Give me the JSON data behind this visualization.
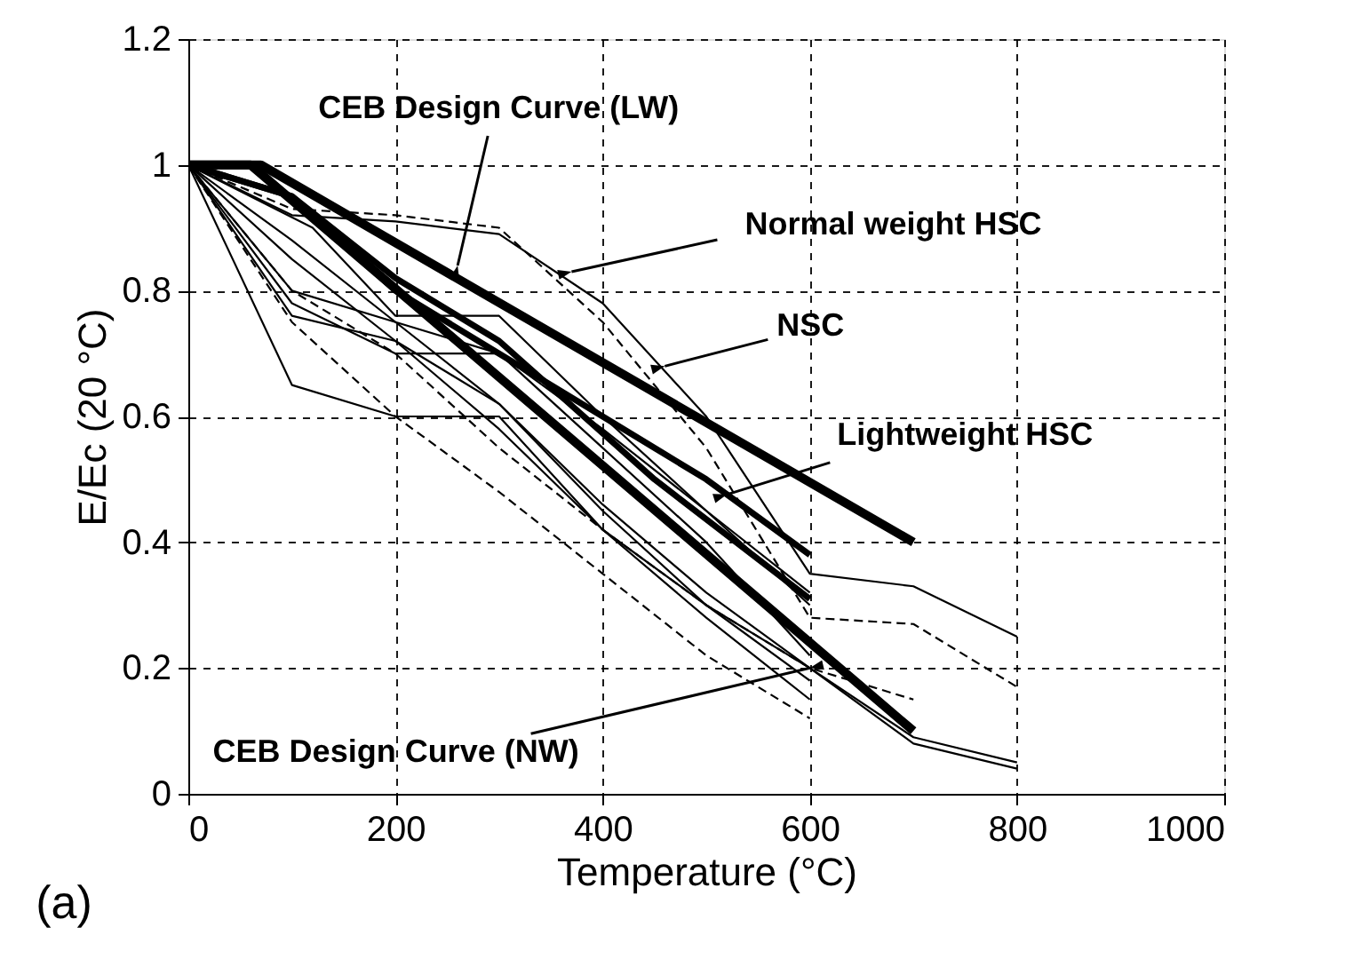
{
  "chart_data": {
    "type": "line",
    "xlabel": "Temperature (°C)",
    "ylabel": "E/Ec (20 °C)",
    "xlim": [
      0,
      1000
    ],
    "xticks": [
      0,
      200,
      400,
      600,
      800,
      1000
    ],
    "ylim": [
      0,
      1.2
    ],
    "yticks": [
      0,
      0.2,
      0.4,
      0.6,
      0.8,
      1,
      1.2
    ],
    "grid": true,
    "line_style": "solid",
    "series": [
      {
        "color": "#000000",
        "x": [
          0,
          70,
          700
        ],
        "values": [
          1,
          1,
          0.4
        ]
      },
      {
        "color": "#000000",
        "x": [
          0,
          60,
          700
        ],
        "values": [
          1,
          1,
          0.1
        ]
      },
      {
        "color": "#000000",
        "x": [
          0,
          100,
          200,
          300,
          400,
          500,
          600
        ],
        "values": [
          1,
          0.95,
          0.8,
          0.7,
          0.6,
          0.5,
          0.38
        ]
      },
      {
        "color": "#000000",
        "x": [
          0,
          100,
          200,
          300,
          450,
          600
        ],
        "values": [
          1,
          0.95,
          0.82,
          0.72,
          0.5,
          0.31
        ]
      },
      {
        "color": "#000000",
        "x": [
          0,
          100,
          200,
          300,
          400,
          500,
          600
        ],
        "values": [
          1,
          0.76,
          0.72,
          0.62,
          0.45,
          0.3,
          0.18
        ]
      },
      {
        "color": "#000000",
        "x": [
          0,
          100,
          200,
          300,
          400,
          500,
          600
        ],
        "values": [
          1,
          0.65,
          0.6,
          0.6,
          0.42,
          0.28,
          0.15
        ]
      },
      {
        "color": "#000000",
        "x": [
          0,
          100,
          200,
          300,
          400,
          500,
          600
        ],
        "values": [
          1,
          0.78,
          0.7,
          0.7,
          0.55,
          0.4,
          0.22
        ]
      },
      {
        "color": "#000000",
        "x": [
          0,
          120,
          200,
          300,
          400,
          500,
          600
        ],
        "values": [
          1,
          0.9,
          0.76,
          0.76,
          0.6,
          0.45,
          0.3
        ]
      },
      {
        "color": "#000000",
        "x": [
          0,
          100,
          200,
          300,
          400,
          500,
          600,
          700,
          800
        ],
        "values": [
          1,
          0.92,
          0.91,
          0.89,
          0.78,
          0.6,
          0.35,
          0.33,
          0.25
        ]
      },
      {
        "color": "#000000",
        "line_style": "dashed",
        "x": [
          0,
          100,
          200,
          300,
          400,
          500,
          600,
          700,
          800
        ],
        "values": [
          1,
          0.93,
          0.92,
          0.9,
          0.75,
          0.55,
          0.28,
          0.27,
          0.17
        ]
      },
      {
        "color": "#000000",
        "line_style": "dashed",
        "x": [
          0,
          100,
          200,
          300,
          400,
          500,
          600
        ],
        "values": [
          1,
          0.75,
          0.6,
          0.48,
          0.35,
          0.22,
          0.12
        ]
      },
      {
        "color": "#000000",
        "line_style": "dashed",
        "x": [
          0,
          100,
          200,
          300,
          400,
          500,
          600,
          700
        ],
        "values": [
          1,
          0.8,
          0.7,
          0.55,
          0.42,
          0.3,
          0.2,
          0.15
        ]
      },
      {
        "color": "#000000",
        "x": [
          0,
          100,
          200,
          300,
          400,
          500,
          600,
          700,
          800
        ],
        "values": [
          1,
          0.85,
          0.72,
          0.58,
          0.42,
          0.3,
          0.2,
          0.08,
          0.04
        ]
      },
      {
        "color": "#000000",
        "x": [
          0,
          100,
          200,
          300,
          400,
          500,
          600,
          700,
          800
        ],
        "values": [
          1,
          0.88,
          0.75,
          0.62,
          0.46,
          0.32,
          0.2,
          0.09,
          0.05
        ]
      },
      {
        "color": "#000000",
        "x": [
          0,
          100,
          200,
          300,
          400,
          500,
          600
        ],
        "values": [
          1,
          0.8,
          0.75,
          0.7,
          0.58,
          0.45,
          0.32
        ]
      }
    ],
    "annotations": [
      {
        "text": "CEB Design Curve (LW)",
        "x": 260,
        "y": 0.84
      },
      {
        "text": "Normal weight HSC",
        "x": 370,
        "y": 0.83
      },
      {
        "text": "NSC",
        "x": 460,
        "y": 0.68
      },
      {
        "text": "Lightweight HSC",
        "x": 520,
        "y": 0.476
      },
      {
        "text": "CEB Design Curve (NW)",
        "x": 600,
        "y": 0.2
      },
      "(a)"
    ]
  }
}
